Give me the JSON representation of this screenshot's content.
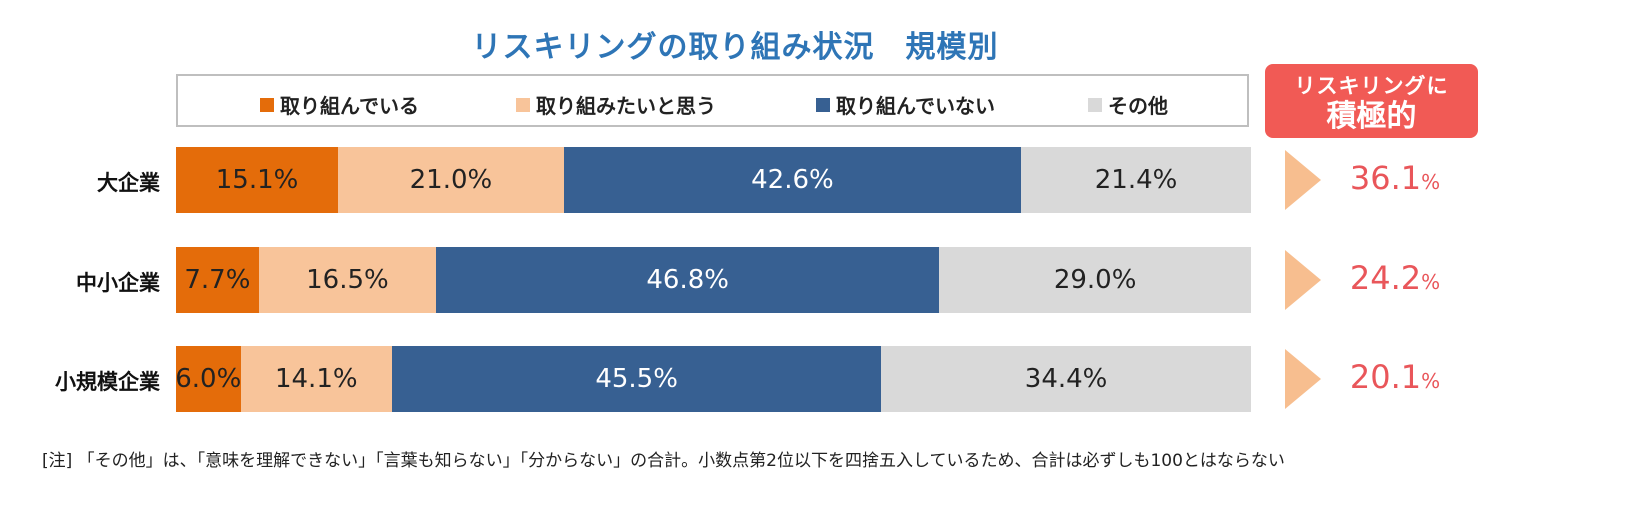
{
  "chart_data": {
    "type": "bar",
    "orientation": "horizontal-stacked-100",
    "title": "リスキリングの取り組み状況　規模別",
    "categories": [
      "大企業",
      "中小企業",
      "小規模企業"
    ],
    "series": [
      {
        "name": "取り組んでいる",
        "color": "#e46c0a",
        "values": [
          15.1,
          7.7,
          6.0
        ]
      },
      {
        "name": "取り組みたいと思う",
        "color": "#f8c49a",
        "values": [
          21.0,
          16.5,
          14.1
        ]
      },
      {
        "name": "取り組んでいない",
        "color": "#376092",
        "values": [
          42.6,
          46.8,
          45.5
        ]
      },
      {
        "name": "その他",
        "color": "#d9d9d9",
        "values": [
          21.4,
          29.0,
          34.4
        ]
      }
    ],
    "unit": "%",
    "legend": "top",
    "side_panel": {
      "header_line1": "リスキリングに",
      "header_line2": "積極的",
      "values": [
        "36.1",
        "24.2",
        "20.1"
      ],
      "unit": "%"
    },
    "note": "[注] 「その他」は、「意味を理解できない」「言葉も知らない」「分からない」の合計。小数点第2位以下を四捨五入しているため、合計は必ずしも100とはならない"
  }
}
